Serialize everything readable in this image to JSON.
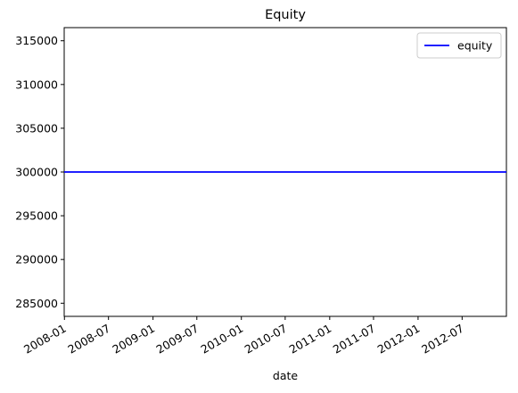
{
  "chart_data": {
    "type": "line",
    "title": "Equity",
    "xlabel": "date",
    "ylabel": "",
    "x": [
      "2007-12-31",
      "2012-12-31"
    ],
    "series": [
      {
        "name": "equity",
        "color": "#0000ff",
        "x": [
          "2007-12-31",
          "2012-12-31"
        ],
        "values": [
          300000,
          300000
        ]
      }
    ],
    "xlim": [
      "2007-12-31",
      "2012-12-31"
    ],
    "ylim": [
      283500,
      316500
    ],
    "x_ticks": [
      "2008-01",
      "2008-07",
      "2009-01",
      "2009-07",
      "2010-01",
      "2010-07",
      "2011-01",
      "2011-07",
      "2012-01",
      "2012-07"
    ],
    "y_ticks": [
      285000,
      290000,
      295000,
      300000,
      305000,
      310000,
      315000
    ],
    "grid": false,
    "legend_position": "top-right"
  }
}
